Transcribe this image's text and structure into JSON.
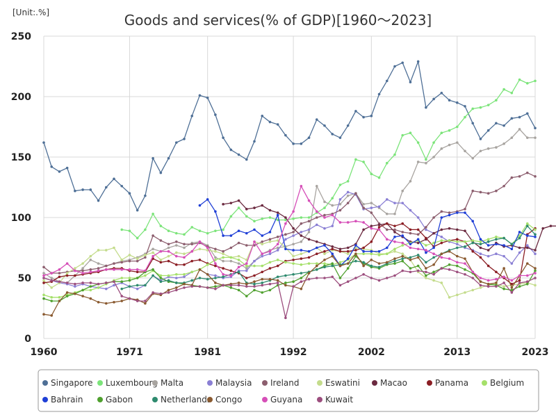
{
  "chart_data": {
    "type": "line",
    "title": "Goods and services(% of GDP)[1960～2023]",
    "unit_label": "[Unit:.%]",
    "xlabel": "",
    "ylabel": "",
    "xlim": [
      1960,
      2023
    ],
    "ylim": [
      0,
      250
    ],
    "x_ticks": [
      1960,
      1971,
      1981,
      1992,
      2002,
      2013,
      2023
    ],
    "y_ticks": [
      0,
      50,
      100,
      150,
      200,
      250
    ],
    "grid": true,
    "legend_position": "bottom",
    "series": [
      {
        "name": "Singapore",
        "color": "#4e6f96",
        "start": 1960,
        "values": [
          162,
          142,
          138,
          141,
          122,
          123,
          123,
          114,
          125,
          132,
          126,
          120,
          106,
          118,
          149,
          137,
          149,
          162,
          165,
          184,
          201,
          199,
          185,
          166,
          156,
          152,
          148,
          163,
          184,
          179,
          177,
          168,
          161,
          161,
          166,
          181,
          176,
          169,
          166,
          176,
          188,
          183,
          184,
          202,
          213,
          225,
          228,
          212,
          229,
          191,
          198,
          203,
          197,
          195,
          192,
          178,
          165,
          172,
          178,
          176,
          182,
          183,
          186,
          174
        ]
      },
      {
        "name": "Luxembourg",
        "color": "#7ce47a",
        "start": 1970,
        "values": [
          90,
          89,
          83,
          90,
          103,
          93,
          89,
          87,
          86,
          92,
          89,
          87,
          89,
          90,
          101,
          108,
          101,
          97,
          99,
          100,
          98,
          98,
          99,
          100,
          100,
          104,
          108,
          116,
          127,
          130,
          148,
          146,
          136,
          133,
          145,
          152,
          168,
          170,
          162,
          148,
          162,
          170,
          172,
          175,
          183,
          190,
          191,
          193,
          197,
          206,
          203,
          214,
          211,
          213
        ]
      },
      {
        "name": "Malta",
        "color": "#a8a4a0",
        "start": 1960,
        "values": [
          54,
          50,
          47,
          46,
          52,
          58,
          65,
          62,
          60,
          62,
          64,
          65,
          67,
          70,
          74,
          72,
          75,
          77,
          75,
          79,
          80,
          77,
          67,
          64,
          64,
          62,
          58,
          64,
          70,
          73,
          75,
          76,
          78,
          80,
          88,
          126,
          113,
          110,
          111,
          118,
          120,
          111,
          112,
          108,
          103,
          103,
          122,
          130,
          146,
          145,
          150,
          157,
          160,
          162,
          155,
          149,
          155,
          157,
          158,
          161,
          166,
          173,
          166,
          166
        ]
      },
      {
        "name": "Malaysia",
        "color": "#8a7fd4",
        "start": 1960,
        "values": [
          50,
          48,
          46,
          45,
          43,
          45,
          43,
          42,
          41,
          44,
          46,
          43,
          41,
          44,
          52,
          48,
          51,
          50,
          51,
          55,
          57,
          53,
          52,
          50,
          51,
          56,
          56,
          64,
          68,
          70,
          73,
          82,
          85,
          88,
          90,
          94,
          91,
          93,
          115,
          121,
          119,
          107,
          108,
          109,
          115,
          112,
          112,
          106,
          100,
          90,
          87,
          84,
          80,
          78,
          75,
          73,
          70,
          68,
          70,
          68,
          62,
          71,
          77,
          70
        ]
      },
      {
        "name": "Ireland",
        "color": "#8c5e6e",
        "start": 1960,
        "values": [
          59,
          54,
          54,
          55,
          56,
          56,
          57,
          58,
          60,
          62,
          63,
          64,
          64,
          67,
          85,
          81,
          78,
          80,
          78,
          78,
          79,
          76,
          74,
          72,
          75,
          79,
          77,
          77,
          80,
          82,
          84,
          86,
          88,
          95,
          97,
          100,
          102,
          103,
          106,
          112,
          120,
          108,
          104,
          95,
          90,
          90,
          88,
          87,
          86,
          92,
          100,
          105,
          104,
          105,
          107,
          122,
          121,
          120,
          122,
          126,
          133,
          134,
          137,
          134
        ]
      },
      {
        "name": "Eswatini",
        "color": "#c4dc8c",
        "start": 1960,
        "values": [
          48,
          42,
          46,
          54,
          58,
          62,
          68,
          73,
          73,
          75,
          65,
          69,
          66,
          69,
          71,
          65,
          68,
          71,
          70,
          72,
          74,
          73,
          72,
          70,
          67,
          68,
          65,
          80,
          78,
          80,
          81,
          75,
          68,
          70,
          72,
          75,
          70,
          73,
          72,
          70,
          75,
          74,
          73,
          70,
          70,
          72,
          70,
          65,
          55,
          50,
          48,
          46,
          34,
          36,
          38,
          40,
          42,
          44,
          45,
          43,
          44,
          45,
          46,
          44
        ]
      },
      {
        "name": "Macao",
        "color": "#6b2a40",
        "start": 1983,
        "values": [
          111,
          112,
          114,
          107,
          108,
          110,
          106,
          104,
          100,
          91,
          85,
          82,
          80,
          78,
          76,
          74,
          75,
          78,
          90,
          93,
          94,
          95,
          88,
          84,
          80,
          79,
          82,
          87,
          90,
          91,
          90,
          89,
          80,
          75,
          73,
          79,
          76,
          77,
          75,
          75,
          73,
          91,
          93,
          93
        ]
      },
      {
        "name": "Panama",
        "color": "#8b1e24",
        "start": 1960,
        "values": [
          46,
          47,
          51,
          52,
          52,
          53,
          54,
          55,
          57,
          58,
          58,
          56,
          55,
          55,
          66,
          63,
          64,
          61,
          61,
          64,
          65,
          62,
          60,
          58,
          56,
          54,
          50,
          52,
          55,
          58,
          60,
          64,
          65,
          66,
          67,
          70,
          72,
          74,
          72,
          72,
          73,
          75,
          80,
          92,
          95,
          93,
          95,
          90,
          90,
          83,
          76,
          79,
          81,
          82,
          80,
          72,
          67,
          60,
          55,
          50,
          45,
          48,
          86,
          91
        ]
      },
      {
        "name": "Belgium",
        "color": "#a5e06a",
        "start": 1960,
        "values": [
          36,
          34,
          34,
          36,
          38,
          40,
          40,
          42,
          45,
          48,
          50,
          50,
          50,
          52,
          56,
          52,
          52,
          53,
          53,
          55,
          57,
          61,
          65,
          67,
          67,
          65,
          60,
          60,
          60,
          63,
          65,
          63,
          62,
          61,
          62,
          62,
          62,
          61,
          63,
          65,
          70,
          70,
          70,
          69,
          70,
          74,
          77,
          79,
          81,
          77,
          79,
          81,
          81,
          80,
          80,
          81,
          80,
          82,
          84,
          83,
          78,
          85,
          95,
          90
        ]
      },
      {
        "name": "Bahrain",
        "color": "#1f3fd6",
        "start": 1980,
        "values": [
          110,
          115,
          105,
          85,
          85,
          89,
          87,
          90,
          85,
          88,
          102,
          74,
          73,
          73,
          72,
          75,
          77,
          70,
          60,
          66,
          77,
          72,
          72,
          72,
          75,
          84,
          85,
          78,
          82,
          71,
          75,
          100,
          102,
          104,
          104,
          97,
          82,
          77,
          78,
          77,
          74,
          88,
          85,
          84
        ]
      },
      {
        "name": "Gabon",
        "color": "#4fa02e",
        "start": 1960,
        "values": [
          33,
          31,
          31,
          35,
          37,
          40,
          43,
          45,
          46,
          47,
          47,
          48,
          50,
          55,
          57,
          50,
          47,
          46,
          45,
          44,
          43,
          42,
          43,
          44,
          42,
          40,
          35,
          40,
          38,
          40,
          44,
          46,
          47,
          50,
          55,
          57,
          60,
          62,
          50,
          58,
          68,
          62,
          59,
          58,
          61,
          62,
          64,
          58,
          60,
          52,
          55,
          58,
          61,
          60,
          57,
          54,
          47,
          45,
          44,
          41,
          40,
          43,
          45,
          56
        ]
      },
      {
        "name": "Netherlands",
        "color": "#2e8a6e",
        "start": 1970,
        "values": [
          41,
          43,
          44,
          44,
          52,
          47,
          48,
          46,
          46,
          48,
          50,
          49,
          50,
          51,
          53,
          55,
          46,
          45,
          46,
          48,
          51,
          52,
          53,
          54,
          55,
          57,
          59,
          60,
          61,
          62,
          64,
          63,
          60,
          59,
          62,
          64,
          66,
          67,
          69,
          63,
          67,
          70,
          73,
          75,
          76,
          79,
          78,
          80,
          82,
          83,
          78,
          83,
          93,
          86
        ]
      },
      {
        "name": "Congo",
        "color": "#8a5a30",
        "start": 1960,
        "values": [
          20,
          19,
          31,
          38,
          37,
          35,
          33,
          30,
          29,
          30,
          31,
          33,
          32,
          29,
          37,
          36,
          40,
          42,
          45,
          44,
          57,
          53,
          46,
          44,
          45,
          46,
          45,
          47,
          49,
          49,
          48,
          44,
          43,
          41,
          54,
          60,
          65,
          68,
          60,
          62,
          70,
          60,
          65,
          62,
          63,
          66,
          68,
          65,
          67,
          58,
          61,
          70,
          72,
          68,
          66,
          55,
          47,
          45,
          46,
          58,
          42,
          52,
          62,
          58
        ]
      },
      {
        "name": "Guyana",
        "color": "#d64fb8",
        "start": 1960,
        "values": [
          52,
          54,
          57,
          62,
          56,
          54,
          55,
          56,
          57,
          57,
          57,
          57,
          57,
          56,
          68,
          72,
          72,
          68,
          67,
          72,
          80,
          75,
          62,
          53,
          52,
          59,
          62,
          80,
          70,
          72,
          78,
          95,
          105,
          126,
          114,
          105,
          100,
          102,
          96,
          96,
          97,
          96,
          91,
          90,
          82,
          80,
          79,
          75,
          74,
          73,
          70,
          67,
          66,
          63,
          62,
          55,
          50,
          48,
          49,
          51,
          48,
          52,
          52,
          54
        ]
      },
      {
        "name": "Kuwait",
        "color": "#9c4e7e",
        "start": 1960,
        "values": [
          50,
          48,
          47,
          46,
          45,
          46,
          46,
          45,
          46,
          47,
          35,
          33,
          31,
          31,
          38,
          37,
          38,
          40,
          42,
          43,
          43,
          42,
          41,
          44,
          44,
          44,
          43,
          43,
          44,
          45,
          46,
          17,
          43,
          47,
          49,
          50,
          50,
          51,
          44,
          47,
          50,
          53,
          50,
          48,
          50,
          52,
          56,
          55,
          56,
          55,
          53,
          58,
          57,
          55,
          53,
          50,
          44,
          43,
          43,
          46,
          38,
          46,
          47,
          50
        ]
      }
    ]
  }
}
